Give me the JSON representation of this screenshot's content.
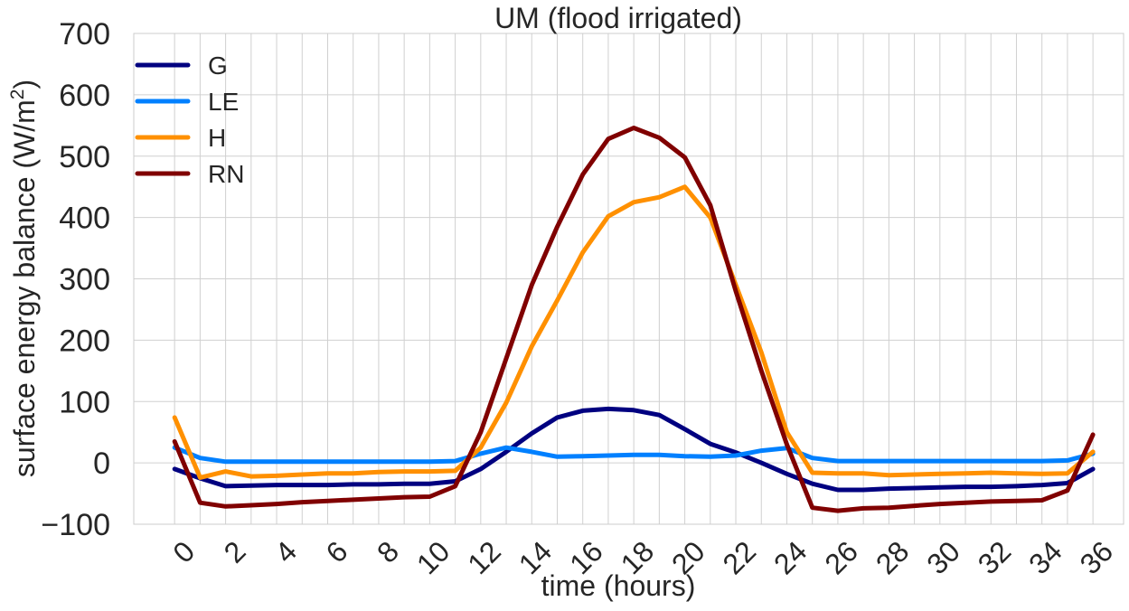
{
  "chart_data": {
    "type": "line",
    "title": "UM (flood irrigated)",
    "xlabel": "time (hours)",
    "ylabel": "surface energy balance (W/m²)",
    "ylabel_main": "surface energy balance (W/m",
    "ylabel_sup": "2",
    "ylabel_end": ")",
    "xlim": [
      -1.6,
      37.2
    ],
    "ylim": [
      -100,
      700
    ],
    "xticks": [
      0,
      2,
      4,
      6,
      8,
      10,
      12,
      14,
      16,
      18,
      20,
      22,
      24,
      26,
      28,
      30,
      32,
      34,
      36
    ],
    "yticks": [
      -100,
      0,
      100,
      200,
      300,
      400,
      500,
      600,
      700
    ],
    "ytick_labels": [
      "−100",
      "0",
      "100",
      "200",
      "300",
      "400",
      "500",
      "600",
      "700"
    ],
    "grid": true,
    "legend_position": "top-left",
    "x": [
      0,
      1,
      2,
      3,
      4,
      5,
      6,
      7,
      8,
      9,
      10,
      11,
      12,
      13,
      14,
      15,
      16,
      17,
      18,
      19,
      20,
      21,
      22,
      23,
      24,
      25,
      26,
      27,
      28,
      29,
      30,
      31,
      32,
      33,
      34,
      35,
      36
    ],
    "series": [
      {
        "name": "G",
        "color": "#000080",
        "values": [
          -10,
          -25,
          -38,
          -37,
          -36,
          -36,
          -36,
          -35,
          -35,
          -34,
          -34,
          -30,
          -10,
          18,
          48,
          74,
          85,
          88,
          86,
          78,
          55,
          31,
          17,
          0,
          -18,
          -34,
          -44,
          -44,
          -42,
          -41,
          -40,
          -39,
          -39,
          -38,
          -36,
          -33,
          -10
        ]
      },
      {
        "name": "LE",
        "color": "#0080ff",
        "values": [
          25,
          8,
          2,
          2,
          2,
          2,
          2,
          2,
          2,
          2,
          2,
          3,
          15,
          25,
          18,
          10,
          11,
          12,
          13,
          13,
          11,
          10,
          12,
          20,
          24,
          8,
          3,
          3,
          3,
          3,
          3,
          3,
          3,
          3,
          3,
          4,
          15
        ]
      },
      {
        "name": "H",
        "color": "#ff9000",
        "values": [
          74,
          -24,
          -14,
          -22,
          -21,
          -19,
          -17,
          -17,
          -15,
          -14,
          -14,
          -13,
          25,
          98,
          190,
          265,
          343,
          402,
          425,
          433,
          450,
          400,
          290,
          180,
          50,
          -16,
          -17,
          -17,
          -20,
          -19,
          -18,
          -17,
          -16,
          -17,
          -18,
          -17,
          18
        ]
      },
      {
        "name": "RN",
        "color": "#800000",
        "values": [
          35,
          -65,
          -71,
          -69,
          -67,
          -64,
          -62,
          -60,
          -58,
          -56,
          -55,
          -38,
          50,
          170,
          290,
          385,
          470,
          528,
          546,
          530,
          498,
          420,
          280,
          150,
          30,
          -73,
          -78,
          -74,
          -73,
          -70,
          -67,
          -65,
          -63,
          -62,
          -61,
          -45,
          46
        ]
      }
    ]
  }
}
